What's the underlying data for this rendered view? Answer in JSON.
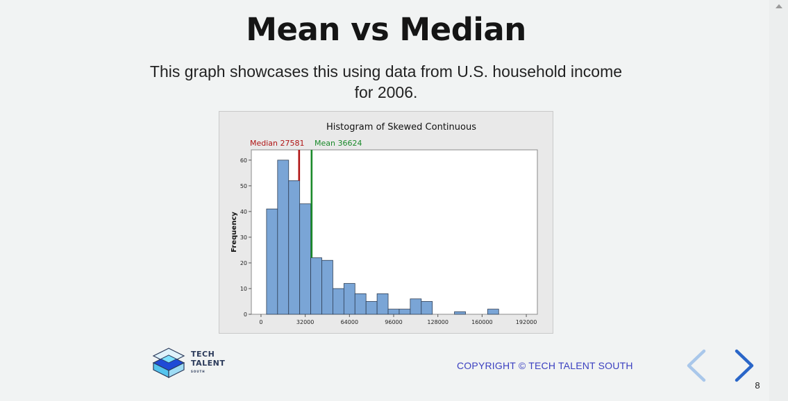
{
  "slide": {
    "title": "Mean vs Median",
    "subtitle": "This graph showcases this using data from U.S. household income for 2006.",
    "copyright": "COPYRIGHT © TECH TALENT SOUTH",
    "page_number": "8",
    "logo": {
      "line1": "TECH",
      "line2": "TALENT",
      "line3": "SOUTH"
    }
  },
  "colors": {
    "bar_fill": "#7aa5d6",
    "bar_stroke": "#2f3f55",
    "median_line": "#b01515",
    "mean_line": "#1a8a2a",
    "copyright": "#3a3fc0",
    "nav_prev": "#a9c7ea",
    "nav_next": "#2a66c8"
  },
  "icons": {
    "prev": "chevron-left-icon",
    "next": "chevron-right-icon",
    "logo": "stacked-diamond-logo"
  },
  "chart_data": {
    "type": "bar",
    "title": "Histogram of Skewed Continuous",
    "xlabel": "",
    "ylabel": "Frequency",
    "bin_width": 8000,
    "bin_starts": [
      4000,
      12000,
      20000,
      28000,
      36000,
      44000,
      52000,
      60000,
      68000,
      76000,
      84000,
      92000,
      100000,
      108000,
      116000,
      124000,
      132000,
      140000,
      148000,
      156000,
      164000,
      172000,
      180000,
      188000
    ],
    "values": [
      41,
      60,
      52,
      43,
      22,
      21,
      10,
      12,
      8,
      5,
      8,
      2,
      2,
      6,
      5,
      0,
      0,
      1,
      0,
      0,
      2,
      0,
      0,
      0
    ],
    "xlim": [
      -7000,
      200000
    ],
    "ylim": [
      0,
      64
    ],
    "x_ticks": [
      0,
      32000,
      64000,
      96000,
      128000,
      160000,
      192000
    ],
    "y_ticks": [
      0,
      10,
      20,
      30,
      40,
      50,
      60
    ],
    "annotations": [
      {
        "label": "Median 27581",
        "value": 27581
      },
      {
        "label": "Mean 36624",
        "value": 36624
      }
    ],
    "grid": false
  }
}
